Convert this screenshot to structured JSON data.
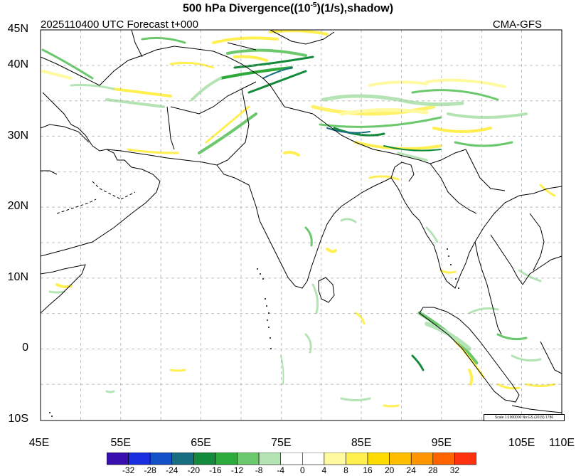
{
  "title_main": "500 hPa Divergence((10",
  "title_exp": "-5",
  "title_tail": ")(1/s),shadow)",
  "forecast_label": "2025110400 UTC Forecast t+000",
  "model_label": "CMA-GFS",
  "lat_labels": [
    "45N",
    "40N",
    "30N",
    "20N",
    "10N",
    "0",
    "10S"
  ],
  "lat_values": [
    45,
    40,
    30,
    20,
    10,
    0,
    -10
  ],
  "lon_labels": [
    "45E",
    "55E",
    "65E",
    "75E",
    "85E",
    "95E",
    "105E",
    "110E"
  ],
  "lon_values": [
    45,
    55,
    65,
    75,
    85,
    95,
    105,
    110
  ],
  "scale_note": "Scale 1:1000000 No:GS (2019) 1786",
  "colorbar": {
    "colors": [
      "#3a0fb0",
      "#1a2fe0",
      "#1450c8",
      "#166e80",
      "#148a3c",
      "#2eaa3c",
      "#6cc86c",
      "#b4e4b4",
      "#ffffff",
      "#ffffff",
      "#fffaa0",
      "#fff050",
      "#ffdc00",
      "#ffbe00",
      "#ff9600",
      "#ff6400",
      "#ff3210"
    ],
    "labels": [
      "-32",
      "-28",
      "-24",
      "-20",
      "-16",
      "-12",
      "-8",
      "-4",
      "0",
      "4",
      "8",
      "16",
      "20",
      "24",
      "28",
      "32"
    ]
  }
}
